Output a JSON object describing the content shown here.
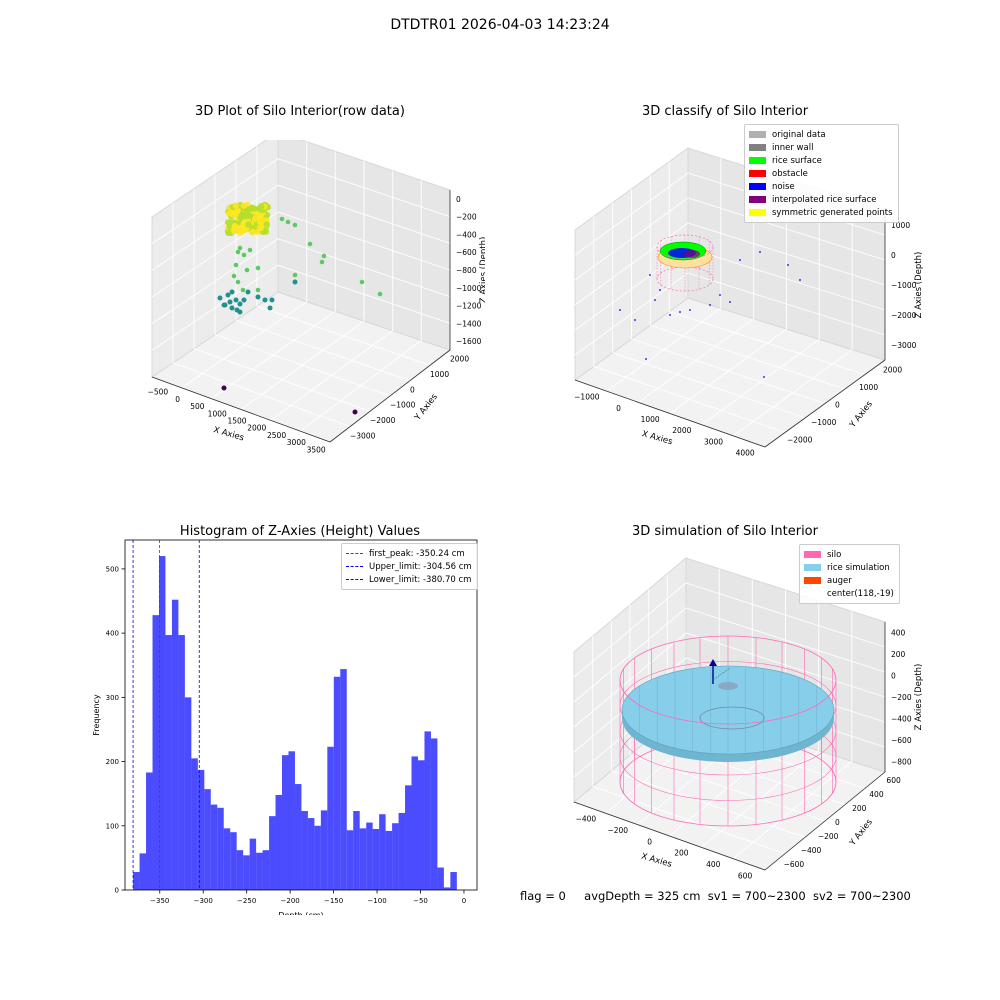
{
  "figure": {
    "suptitle": "DTDTR01 2026-04-03 14:23:24",
    "footer": {
      "flag": "flag = 0",
      "avg_depth": "avgDepth = 325 cm",
      "sv1": "sv1 = 700~2300",
      "sv2": "sv2 = 700~2300"
    }
  },
  "panels": {
    "raw3d": {
      "title": "3D Plot of Silo Interior(row data)",
      "xlabel": "X Axies",
      "ylabel": "Y Axies",
      "zlabel": "Z Axies (Depth)",
      "xticks": [
        "−500",
        "0",
        "500",
        "1000",
        "1500",
        "2000",
        "2500",
        "3000",
        "3500"
      ],
      "yticks": [
        "2000",
        "1000",
        "0",
        "−1000",
        "−2000",
        "−3000"
      ],
      "zticks": [
        "0",
        "−200",
        "−400",
        "−600",
        "−800",
        "−1000",
        "−1200",
        "−1400",
        "−1600"
      ],
      "colormap": [
        "#440154",
        "#3b528b",
        "#21918c",
        "#5ec962",
        "#fde725"
      ]
    },
    "classify3d": {
      "title": "3D classify of Silo Interior",
      "xlabel": "X Axies",
      "ylabel": "Y Axies",
      "zlabel": "Z Axies (Depth)",
      "xticks": [
        "−1000",
        "0",
        "1000",
        "2000",
        "3000",
        "4000"
      ],
      "yticks": [
        "2000",
        "1000",
        "0",
        "−1000",
        "−2000"
      ],
      "zticks": [
        "1000",
        "0",
        "−1000",
        "−2000",
        "−3000"
      ],
      "legend": [
        {
          "label": "original data",
          "color": "#b0b0b0"
        },
        {
          "label": "inner wall",
          "color": "#808080"
        },
        {
          "label": "rice surface",
          "color": "#00ff00"
        },
        {
          "label": "obstacle",
          "color": "#ff0000"
        },
        {
          "label": "noise",
          "color": "#0000ff"
        },
        {
          "label": "interpolated rice surface",
          "color": "#800080"
        },
        {
          "label": "symmetric generated points",
          "color": "#ffff00"
        }
      ]
    },
    "simulation3d": {
      "title": "3D simulation of Silo Interior",
      "xlabel": "X Axies",
      "ylabel": "Y Axies",
      "zlabel": "Z Axies (Depth)",
      "xticks": [
        "−400",
        "−200",
        "0",
        "200",
        "400",
        "600"
      ],
      "yticks": [
        "600",
        "400",
        "200",
        "0",
        "−200",
        "−400",
        "−600"
      ],
      "zticks": [
        "400",
        "200",
        "0",
        "−200",
        "−400",
        "−600",
        "−800"
      ],
      "legend": [
        {
          "label": "silo",
          "color": "#ff69b4"
        },
        {
          "label": "rice simulation",
          "color": "#87ceeb"
        },
        {
          "label": "auger",
          "color": "#ff4500"
        },
        {
          "label": "center(118,-19)",
          "color": "none"
        }
      ]
    }
  },
  "chart_data": {
    "type": "bar",
    "title": "Histogram of Z-Axies (Height) Values",
    "xlabel": "Depth (cm)",
    "ylabel": "Frequency",
    "xlim": [
      -390,
      15
    ],
    "ylim": [
      0,
      545
    ],
    "bar_color": "#0000ff",
    "xticks": [
      -350,
      -300,
      -250,
      -200,
      -150,
      -100,
      -50,
      0
    ],
    "yticks": [
      0,
      100,
      200,
      300,
      400,
      500
    ],
    "bin_start": -380.7,
    "bin_width": 7.45,
    "values": [
      28,
      57,
      183,
      428,
      520,
      397,
      452,
      397,
      300,
      205,
      187,
      157,
      133,
      128,
      96,
      90,
      62,
      54,
      80,
      58,
      62,
      115,
      148,
      210,
      216,
      165,
      123,
      112,
      100,
      124,
      223,
      332,
      344,
      93,
      123,
      96,
      105,
      95,
      118,
      92,
      104,
      120,
      163,
      208,
      202,
      247,
      236,
      35,
      4,
      28
    ],
    "vlines": [
      {
        "label": "first_peak: -350.24 cm",
        "x": -350.24,
        "color": "#ff0000"
      },
      {
        "label": "Upper_limit: -304.56 cm",
        "x": -304.56,
        "color": "#0000ff"
      },
      {
        "label": "Lower_limit: -380.70 cm",
        "x": -380.7,
        "color": "#0000ff"
      }
    ]
  }
}
